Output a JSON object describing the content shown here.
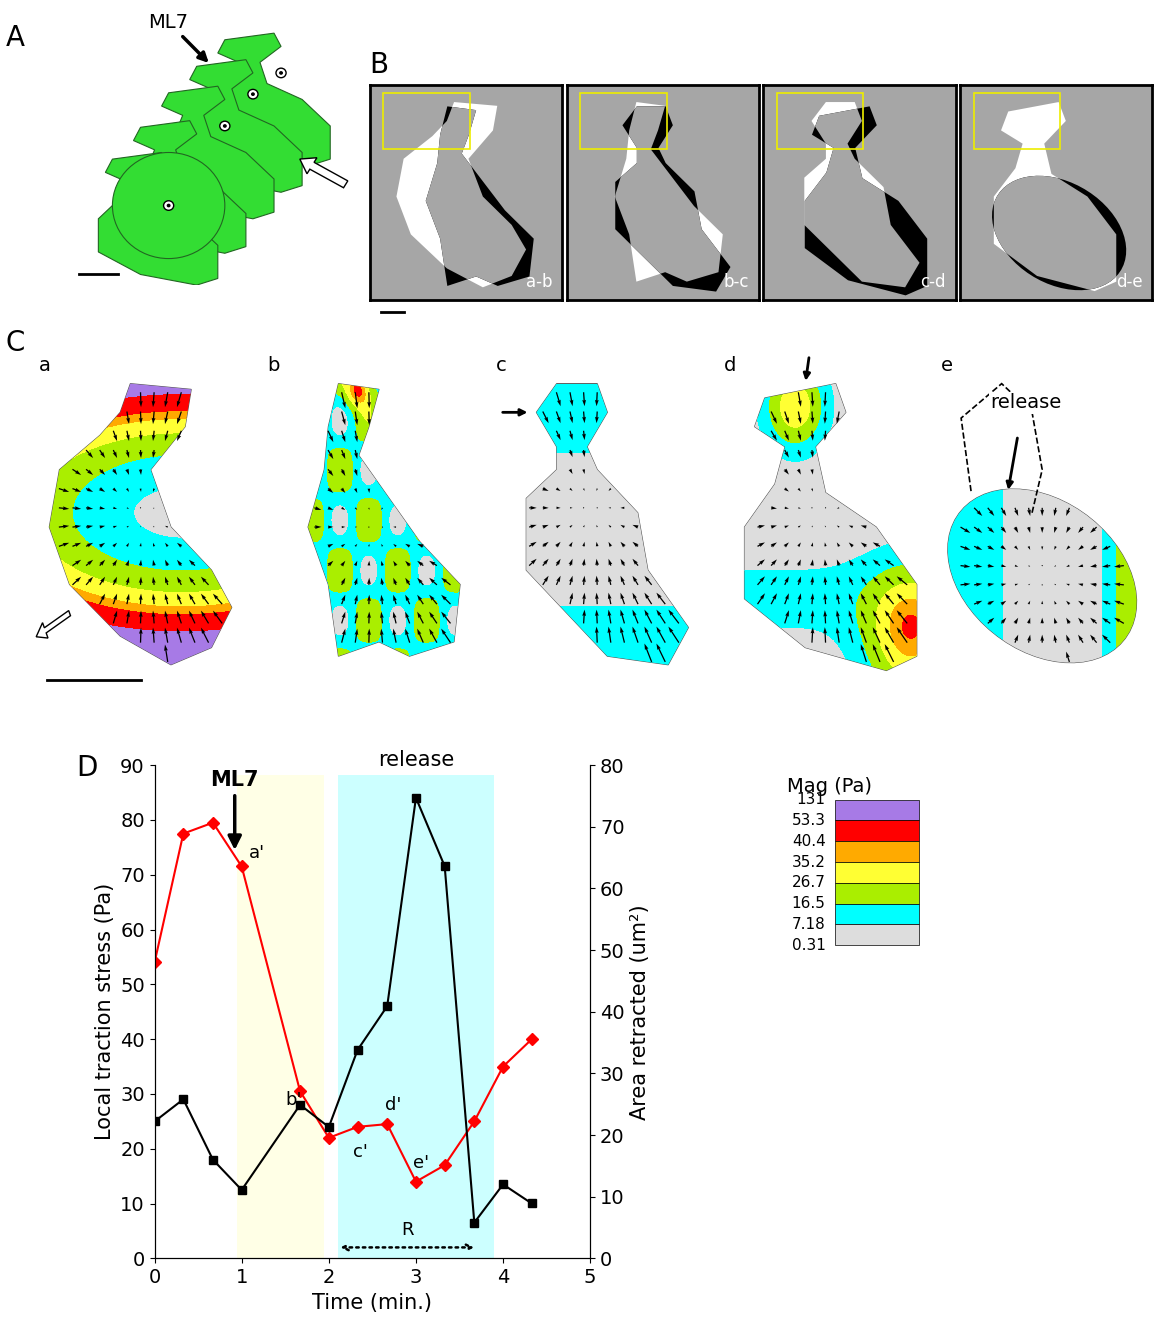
{
  "panel_labels": [
    "A",
    "B",
    "C",
    "D"
  ],
  "panel_a": {
    "annotation": "ML7"
  },
  "panel_b": {
    "frame_labels": [
      "a-b",
      "b-c",
      "c-d",
      "d-e"
    ]
  },
  "panel_c": {
    "cell_labels": [
      "a",
      "b",
      "c",
      "d",
      "e"
    ],
    "annotation": "release"
  },
  "colorbar": {
    "title": "Mag (Pa)",
    "ticks": [
      131,
      53.3,
      40.4,
      35.2,
      26.7,
      16.5,
      7.18,
      0.31
    ],
    "colors": [
      "#a77ae6",
      "#ff0000",
      "#ffaa00",
      "#ffff33",
      "#aaee00",
      "#00ffff",
      "#dddddd"
    ]
  },
  "chart_data": {
    "type": "line",
    "x_label": "Time (min.)",
    "y_label": "Local traction stress (Pa)",
    "y2_label": "Area retracted (um²)",
    "xlim": [
      0,
      5
    ],
    "xticks": [
      0,
      1,
      2,
      3,
      4,
      5
    ],
    "ylim": [
      0,
      90
    ],
    "yticks": [
      0,
      10,
      20,
      30,
      40,
      50,
      60,
      70,
      80,
      90
    ],
    "y2lim": [
      0,
      80
    ],
    "y2ticks": [
      0,
      10,
      20,
      30,
      40,
      50,
      60,
      70,
      80
    ],
    "series": [
      {
        "color": "#ff0000",
        "marker": "diamond",
        "x": [
          0,
          0.33,
          0.67,
          1.0,
          1.67,
          2.0,
          2.33,
          2.67,
          3.0,
          3.33,
          3.67,
          4.0,
          4.33
        ],
        "values": [
          54,
          77.5,
          79.5,
          71.5,
          30.5,
          22,
          24,
          24.5,
          14,
          17,
          25,
          35,
          40
        ]
      },
      {
        "color": "#000000",
        "marker": "square",
        "axis": "y2",
        "x": [
          0,
          0.33,
          0.67,
          1.0,
          1.67,
          2.0,
          2.33,
          2.67,
          3.0,
          3.33,
          3.67,
          4.0,
          4.33
        ],
        "values": [
          22.2,
          25.8,
          16,
          11.1,
          24.9,
          21.3,
          33.8,
          40.9,
          74.7,
          63.6,
          5.8,
          12,
          8.9
        ]
      }
    ],
    "spans": [
      {
        "x0": 0.95,
        "x1": 1.95,
        "color": "#ffffe6"
      },
      {
        "x0": 2.1,
        "x1": 3.9,
        "color": "#ccffff",
        "label": "release"
      }
    ],
    "arrow_annotation": {
      "text": "ML7",
      "x": 0.92,
      "y": 74
    },
    "annotations": [
      {
        "text": "a'",
        "x": 1.08,
        "y": 73
      },
      {
        "text": "b'",
        "x": 1.5,
        "y": 28
      },
      {
        "text": "c'",
        "x": 2.28,
        "y": 18.5
      },
      {
        "text": "d'",
        "x": 2.65,
        "y": 27
      },
      {
        "text": "e'",
        "x": 2.97,
        "y": 16.5
      }
    ],
    "range_arrow": {
      "text": "R",
      "x0": 2.1,
      "x1": 3.7,
      "y": 2
    }
  }
}
